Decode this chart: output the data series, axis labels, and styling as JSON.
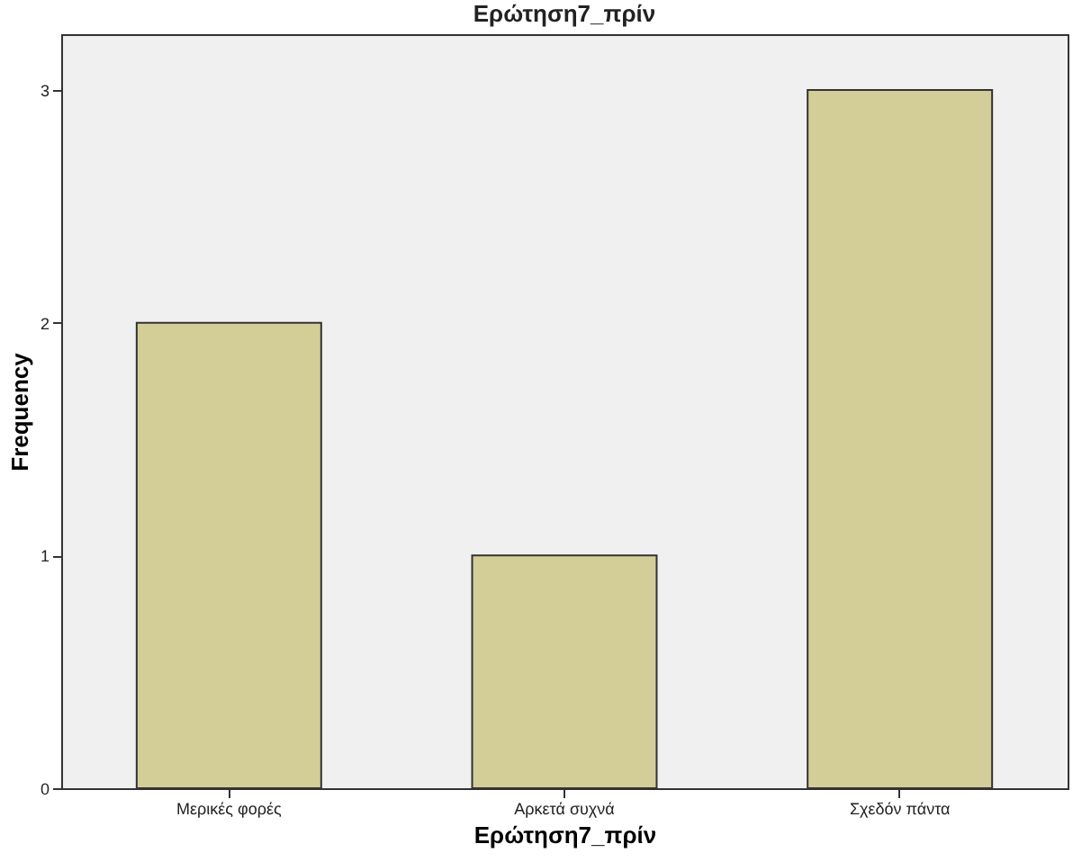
{
  "chart_data": {
    "type": "bar",
    "title": "Ερώτηση7_πρίν",
    "xlabel": "Ερώτηση7_πρίν",
    "ylabel": "Frequency",
    "categories": [
      "Μερικές φορές",
      "Αρκετά συχνά",
      "Σχεδόν πάντα"
    ],
    "values": [
      2,
      1,
      3
    ],
    "color": "#d3ce97",
    "ylim": [
      0,
      3.24
    ],
    "yticks": [
      0,
      1,
      2,
      3
    ],
    "grid": false
  }
}
